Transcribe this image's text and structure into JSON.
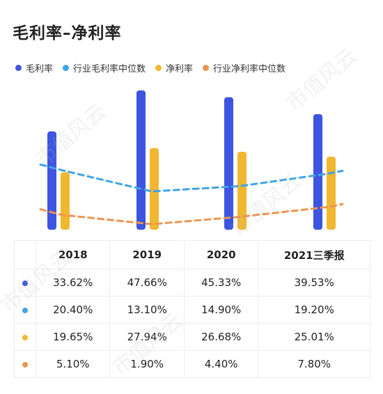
{
  "title": "毛利率–净利率",
  "colors": {
    "gross_margin": "#3d55e0",
    "industry_gross_margin_median": "#3ea4e8",
    "net_margin": "#f1b731",
    "industry_net_margin_median": "#ec9550"
  },
  "watermark_text": "市值风云",
  "chart_data": {
    "type": "bar",
    "categories": [
      "2018",
      "2019",
      "2020",
      "2021三季报"
    ],
    "series": [
      {
        "name": "毛利率",
        "kind": "bar",
        "color": "#3d55e0",
        "values": [
          33.62,
          47.66,
          45.33,
          39.53
        ],
        "labels": [
          "33.62%",
          "47.66%",
          "45.33%",
          "39.53%"
        ]
      },
      {
        "name": "行业毛利率中位数",
        "kind": "dashed-line",
        "color": "#3ea4e8",
        "values": [
          20.4,
          13.1,
          14.9,
          19.2
        ],
        "labels": [
          "20.40%",
          "13.10%",
          "14.90%",
          "19.20%"
        ]
      },
      {
        "name": "净利率",
        "kind": "bar",
        "color": "#f1b731",
        "values": [
          19.65,
          27.94,
          26.68,
          25.01
        ],
        "labels": [
          "19.65%",
          "27.94%",
          "26.68%",
          "25.01%"
        ]
      },
      {
        "name": "行业净利率中位数",
        "kind": "dashed-line",
        "color": "#ec9550",
        "values": [
          5.1,
          1.9,
          4.4,
          7.8
        ],
        "labels": [
          "5.10%",
          "1.90%",
          "4.40%",
          "7.80%"
        ]
      }
    ],
    "ylim": [
      0,
      50
    ],
    "grid": false,
    "legend": "top-left",
    "table_below": true
  }
}
